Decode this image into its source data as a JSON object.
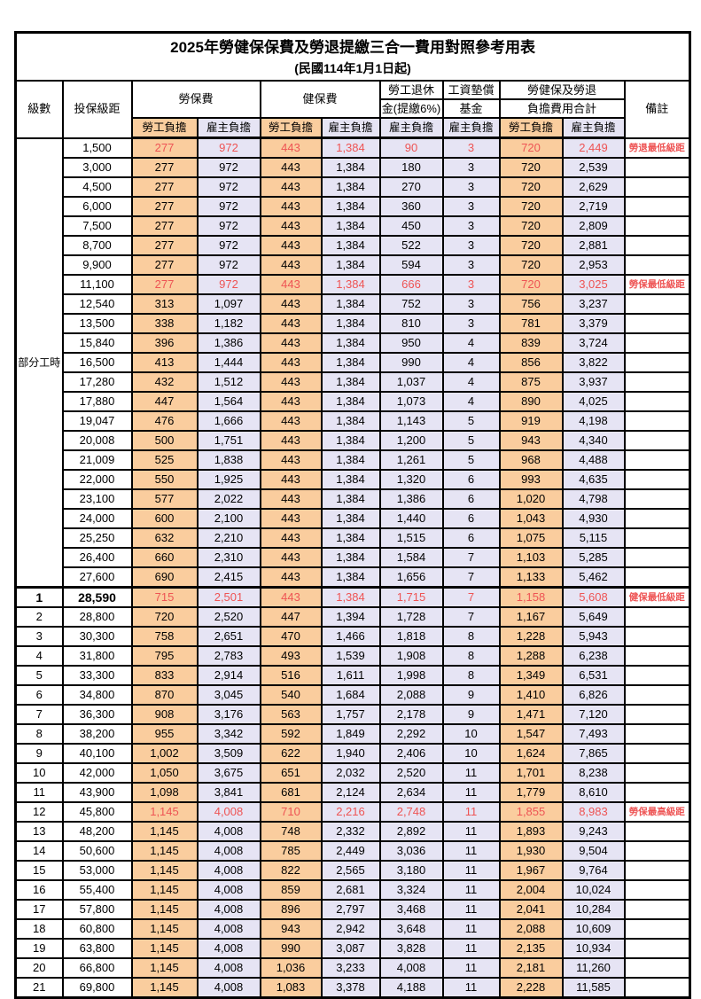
{
  "title": "2025年勞健保保費及勞退提繳三合一費用對照參考用表",
  "subtitle": "(民國114年1月1日起)",
  "header": {
    "level": "級數",
    "bracket": "投保級距",
    "labor_insurance": "勞保費",
    "health_insurance": "健保費",
    "pension_line1": "勞工退休",
    "pension_line2": "金(提繳6%)",
    "wage_fund_line1": "工資墊償",
    "wage_fund_line2": "基金",
    "total_line1": "勞健保及勞退",
    "total_line2": "負擔費用合計",
    "remark": "備註",
    "employee_share": "勞工負擔",
    "employer_share": "雇主負擔"
  },
  "part_time_label": "部分工時",
  "part_time_rowspan": 23,
  "colors": {
    "employee_bg": "#FACD9E",
    "employer_bg": "#E6E4F4",
    "highlight_red": "#EE5454",
    "border": "#000000"
  },
  "rows": [
    {
      "level": "",
      "bracket": "1,500",
      "values": [
        "277",
        "972",
        "443",
        "1,384",
        "90",
        "3",
        "720",
        "2,449"
      ],
      "remark": "勞退最低級距",
      "red": true,
      "thick_top": false,
      "bold": false
    },
    {
      "level": "",
      "bracket": "3,000",
      "values": [
        "277",
        "972",
        "443",
        "1,384",
        "180",
        "3",
        "720",
        "2,539"
      ],
      "remark": "",
      "red": false,
      "thick_top": false,
      "bold": false
    },
    {
      "level": "",
      "bracket": "4,500",
      "values": [
        "277",
        "972",
        "443",
        "1,384",
        "270",
        "3",
        "720",
        "2,629"
      ],
      "remark": "",
      "red": false,
      "thick_top": false,
      "bold": false
    },
    {
      "level": "",
      "bracket": "6,000",
      "values": [
        "277",
        "972",
        "443",
        "1,384",
        "360",
        "3",
        "720",
        "2,719"
      ],
      "remark": "",
      "red": false,
      "thick_top": false,
      "bold": false
    },
    {
      "level": "",
      "bracket": "7,500",
      "values": [
        "277",
        "972",
        "443",
        "1,384",
        "450",
        "3",
        "720",
        "2,809"
      ],
      "remark": "",
      "red": false,
      "thick_top": false,
      "bold": false
    },
    {
      "level": "",
      "bracket": "8,700",
      "values": [
        "277",
        "972",
        "443",
        "1,384",
        "522",
        "3",
        "720",
        "2,881"
      ],
      "remark": "",
      "red": false,
      "thick_top": false,
      "bold": false
    },
    {
      "level": "",
      "bracket": "9,900",
      "values": [
        "277",
        "972",
        "443",
        "1,384",
        "594",
        "3",
        "720",
        "2,953"
      ],
      "remark": "",
      "red": false,
      "thick_top": false,
      "bold": false
    },
    {
      "level": "",
      "bracket": "11,100",
      "values": [
        "277",
        "972",
        "443",
        "1,384",
        "666",
        "3",
        "720",
        "3,025"
      ],
      "remark": "勞保最低級距",
      "red": true,
      "thick_top": false,
      "bold": false
    },
    {
      "level": "",
      "bracket": "12,540",
      "values": [
        "313",
        "1,097",
        "443",
        "1,384",
        "752",
        "3",
        "756",
        "3,237"
      ],
      "remark": "",
      "red": false,
      "thick_top": false,
      "bold": false
    },
    {
      "level": "",
      "bracket": "13,500",
      "values": [
        "338",
        "1,182",
        "443",
        "1,384",
        "810",
        "3",
        "781",
        "3,379"
      ],
      "remark": "",
      "red": false,
      "thick_top": false,
      "bold": false
    },
    {
      "level": "",
      "bracket": "15,840",
      "values": [
        "396",
        "1,386",
        "443",
        "1,384",
        "950",
        "4",
        "839",
        "3,724"
      ],
      "remark": "",
      "red": false,
      "thick_top": false,
      "bold": false
    },
    {
      "level": "",
      "bracket": "16,500",
      "values": [
        "413",
        "1,444",
        "443",
        "1,384",
        "990",
        "4",
        "856",
        "3,822"
      ],
      "remark": "",
      "red": false,
      "thick_top": false,
      "bold": false
    },
    {
      "level": "",
      "bracket": "17,280",
      "values": [
        "432",
        "1,512",
        "443",
        "1,384",
        "1,037",
        "4",
        "875",
        "3,937"
      ],
      "remark": "",
      "red": false,
      "thick_top": false,
      "bold": false
    },
    {
      "level": "",
      "bracket": "17,880",
      "values": [
        "447",
        "1,564",
        "443",
        "1,384",
        "1,073",
        "4",
        "890",
        "4,025"
      ],
      "remark": "",
      "red": false,
      "thick_top": false,
      "bold": false
    },
    {
      "level": "",
      "bracket": "19,047",
      "values": [
        "476",
        "1,666",
        "443",
        "1,384",
        "1,143",
        "5",
        "919",
        "4,198"
      ],
      "remark": "",
      "red": false,
      "thick_top": false,
      "bold": false
    },
    {
      "level": "",
      "bracket": "20,008",
      "values": [
        "500",
        "1,751",
        "443",
        "1,384",
        "1,200",
        "5",
        "943",
        "4,340"
      ],
      "remark": "",
      "red": false,
      "thick_top": false,
      "bold": false
    },
    {
      "level": "",
      "bracket": "21,009",
      "values": [
        "525",
        "1,838",
        "443",
        "1,384",
        "1,261",
        "5",
        "968",
        "4,488"
      ],
      "remark": "",
      "red": false,
      "thick_top": false,
      "bold": false
    },
    {
      "level": "",
      "bracket": "22,000",
      "values": [
        "550",
        "1,925",
        "443",
        "1,384",
        "1,320",
        "6",
        "993",
        "4,635"
      ],
      "remark": "",
      "red": false,
      "thick_top": false,
      "bold": false
    },
    {
      "level": "",
      "bracket": "23,100",
      "values": [
        "577",
        "2,022",
        "443",
        "1,384",
        "1,386",
        "6",
        "1,020",
        "4,798"
      ],
      "remark": "",
      "red": false,
      "thick_top": false,
      "bold": false
    },
    {
      "level": "",
      "bracket": "24,000",
      "values": [
        "600",
        "2,100",
        "443",
        "1,384",
        "1,440",
        "6",
        "1,043",
        "4,930"
      ],
      "remark": "",
      "red": false,
      "thick_top": false,
      "bold": false
    },
    {
      "level": "",
      "bracket": "25,250",
      "values": [
        "632",
        "2,210",
        "443",
        "1,384",
        "1,515",
        "6",
        "1,075",
        "5,115"
      ],
      "remark": "",
      "red": false,
      "thick_top": false,
      "bold": false
    },
    {
      "level": "",
      "bracket": "26,400",
      "values": [
        "660",
        "2,310",
        "443",
        "1,384",
        "1,584",
        "7",
        "1,103",
        "5,285"
      ],
      "remark": "",
      "red": false,
      "thick_top": false,
      "bold": false
    },
    {
      "level": "",
      "bracket": "27,600",
      "values": [
        "690",
        "2,415",
        "443",
        "1,384",
        "1,656",
        "7",
        "1,133",
        "5,462"
      ],
      "remark": "",
      "red": false,
      "thick_top": false,
      "bold": false
    },
    {
      "level": "1",
      "bracket": "28,590",
      "values": [
        "715",
        "2,501",
        "443",
        "1,384",
        "1,715",
        "7",
        "1,158",
        "5,608"
      ],
      "remark": "健保最低級距",
      "red": true,
      "thick_top": true,
      "bold": true
    },
    {
      "level": "2",
      "bracket": "28,800",
      "values": [
        "720",
        "2,520",
        "447",
        "1,394",
        "1,728",
        "7",
        "1,167",
        "5,649"
      ],
      "remark": "",
      "red": false,
      "thick_top": false,
      "bold": false
    },
    {
      "level": "3",
      "bracket": "30,300",
      "values": [
        "758",
        "2,651",
        "470",
        "1,466",
        "1,818",
        "8",
        "1,228",
        "5,943"
      ],
      "remark": "",
      "red": false,
      "thick_top": false,
      "bold": false
    },
    {
      "level": "4",
      "bracket": "31,800",
      "values": [
        "795",
        "2,783",
        "493",
        "1,539",
        "1,908",
        "8",
        "1,288",
        "6,238"
      ],
      "remark": "",
      "red": false,
      "thick_top": false,
      "bold": false
    },
    {
      "level": "5",
      "bracket": "33,300",
      "values": [
        "833",
        "2,914",
        "516",
        "1,611",
        "1,998",
        "8",
        "1,349",
        "6,531"
      ],
      "remark": "",
      "red": false,
      "thick_top": false,
      "bold": false
    },
    {
      "level": "6",
      "bracket": "34,800",
      "values": [
        "870",
        "3,045",
        "540",
        "1,684",
        "2,088",
        "9",
        "1,410",
        "6,826"
      ],
      "remark": "",
      "red": false,
      "thick_top": false,
      "bold": false
    },
    {
      "level": "7",
      "bracket": "36,300",
      "values": [
        "908",
        "3,176",
        "563",
        "1,757",
        "2,178",
        "9",
        "1,471",
        "7,120"
      ],
      "remark": "",
      "red": false,
      "thick_top": false,
      "bold": false
    },
    {
      "level": "8",
      "bracket": "38,200",
      "values": [
        "955",
        "3,342",
        "592",
        "1,849",
        "2,292",
        "10",
        "1,547",
        "7,493"
      ],
      "remark": "",
      "red": false,
      "thick_top": false,
      "bold": false
    },
    {
      "level": "9",
      "bracket": "40,100",
      "values": [
        "1,002",
        "3,509",
        "622",
        "1,940",
        "2,406",
        "10",
        "1,624",
        "7,865"
      ],
      "remark": "",
      "red": false,
      "thick_top": false,
      "bold": false
    },
    {
      "level": "10",
      "bracket": "42,000",
      "values": [
        "1,050",
        "3,675",
        "651",
        "2,032",
        "2,520",
        "11",
        "1,701",
        "8,238"
      ],
      "remark": "",
      "red": false,
      "thick_top": false,
      "bold": false
    },
    {
      "level": "11",
      "bracket": "43,900",
      "values": [
        "1,098",
        "3,841",
        "681",
        "2,124",
        "2,634",
        "11",
        "1,779",
        "8,610"
      ],
      "remark": "",
      "red": false,
      "thick_top": false,
      "bold": false
    },
    {
      "level": "12",
      "bracket": "45,800",
      "values": [
        "1,145",
        "4,008",
        "710",
        "2,216",
        "2,748",
        "11",
        "1,855",
        "8,983"
      ],
      "remark": "勞保最高級距",
      "red": true,
      "thick_top": false,
      "bold": false
    },
    {
      "level": "13",
      "bracket": "48,200",
      "values": [
        "1,145",
        "4,008",
        "748",
        "2,332",
        "2,892",
        "11",
        "1,893",
        "9,243"
      ],
      "remark": "",
      "red": false,
      "thick_top": false,
      "bold": false
    },
    {
      "level": "14",
      "bracket": "50,600",
      "values": [
        "1,145",
        "4,008",
        "785",
        "2,449",
        "3,036",
        "11",
        "1,930",
        "9,504"
      ],
      "remark": "",
      "red": false,
      "thick_top": false,
      "bold": false
    },
    {
      "level": "15",
      "bracket": "53,000",
      "values": [
        "1,145",
        "4,008",
        "822",
        "2,565",
        "3,180",
        "11",
        "1,967",
        "9,764"
      ],
      "remark": "",
      "red": false,
      "thick_top": false,
      "bold": false
    },
    {
      "level": "16",
      "bracket": "55,400",
      "values": [
        "1,145",
        "4,008",
        "859",
        "2,681",
        "3,324",
        "11",
        "2,004",
        "10,024"
      ],
      "remark": "",
      "red": false,
      "thick_top": false,
      "bold": false
    },
    {
      "level": "17",
      "bracket": "57,800",
      "values": [
        "1,145",
        "4,008",
        "896",
        "2,797",
        "3,468",
        "11",
        "2,041",
        "10,284"
      ],
      "remark": "",
      "red": false,
      "thick_top": false,
      "bold": false
    },
    {
      "level": "18",
      "bracket": "60,800",
      "values": [
        "1,145",
        "4,008",
        "943",
        "2,942",
        "3,648",
        "11",
        "2,088",
        "10,609"
      ],
      "remark": "",
      "red": false,
      "thick_top": false,
      "bold": false
    },
    {
      "level": "19",
      "bracket": "63,800",
      "values": [
        "1,145",
        "4,008",
        "990",
        "3,087",
        "3,828",
        "11",
        "2,135",
        "10,934"
      ],
      "remark": "",
      "red": false,
      "thick_top": false,
      "bold": false
    },
    {
      "level": "20",
      "bracket": "66,800",
      "values": [
        "1,145",
        "4,008",
        "1,036",
        "3,233",
        "4,008",
        "11",
        "2,181",
        "11,260"
      ],
      "remark": "",
      "red": false,
      "thick_top": false,
      "bold": false
    },
    {
      "level": "21",
      "bracket": "69,800",
      "values": [
        "1,145",
        "4,008",
        "1,083",
        "3,378",
        "4,188",
        "11",
        "2,228",
        "11,585"
      ],
      "remark": "",
      "red": false,
      "thick_top": false,
      "bold": false
    }
  ],
  "value_column_types": [
    "employee",
    "employer",
    "employee",
    "employer",
    "employer",
    "employer",
    "employee",
    "employer"
  ]
}
